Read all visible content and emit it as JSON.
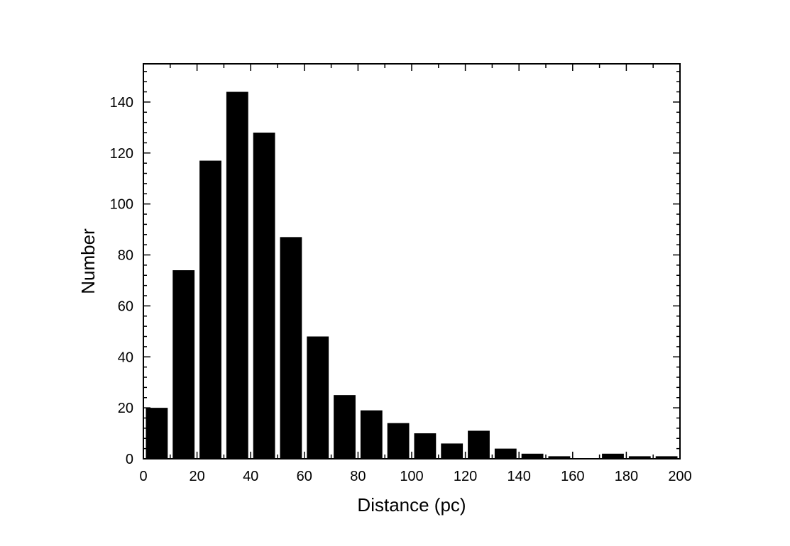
{
  "chart_data": {
    "type": "bar",
    "title": "",
    "xlabel": "Distance (pc)",
    "ylabel": "Number",
    "xlim": [
      0,
      200
    ],
    "ylim": [
      0,
      155
    ],
    "bin_width": 10,
    "x": [
      5,
      15,
      25,
      35,
      45,
      55,
      65,
      75,
      85,
      95,
      105,
      115,
      125,
      135,
      145,
      155,
      165,
      175,
      185,
      195
    ],
    "values": [
      20,
      74,
      117,
      144,
      128,
      87,
      48,
      25,
      19,
      14,
      10,
      6,
      11,
      4,
      2,
      1,
      0,
      2,
      1,
      1
    ],
    "x_ticks": [
      0,
      20,
      40,
      60,
      80,
      100,
      120,
      140,
      160,
      180,
      200
    ],
    "x_tick_labels": [
      "0",
      "20",
      "40",
      "60",
      "80",
      "100",
      "120",
      "140",
      "160",
      "180",
      "200"
    ],
    "y_ticks": [
      0,
      20,
      40,
      60,
      80,
      100,
      120,
      140
    ],
    "y_tick_labels": [
      "0",
      "20",
      "40",
      "60",
      "80",
      "100",
      "120",
      "140"
    ],
    "grid": false,
    "bar_color": "#000000"
  }
}
